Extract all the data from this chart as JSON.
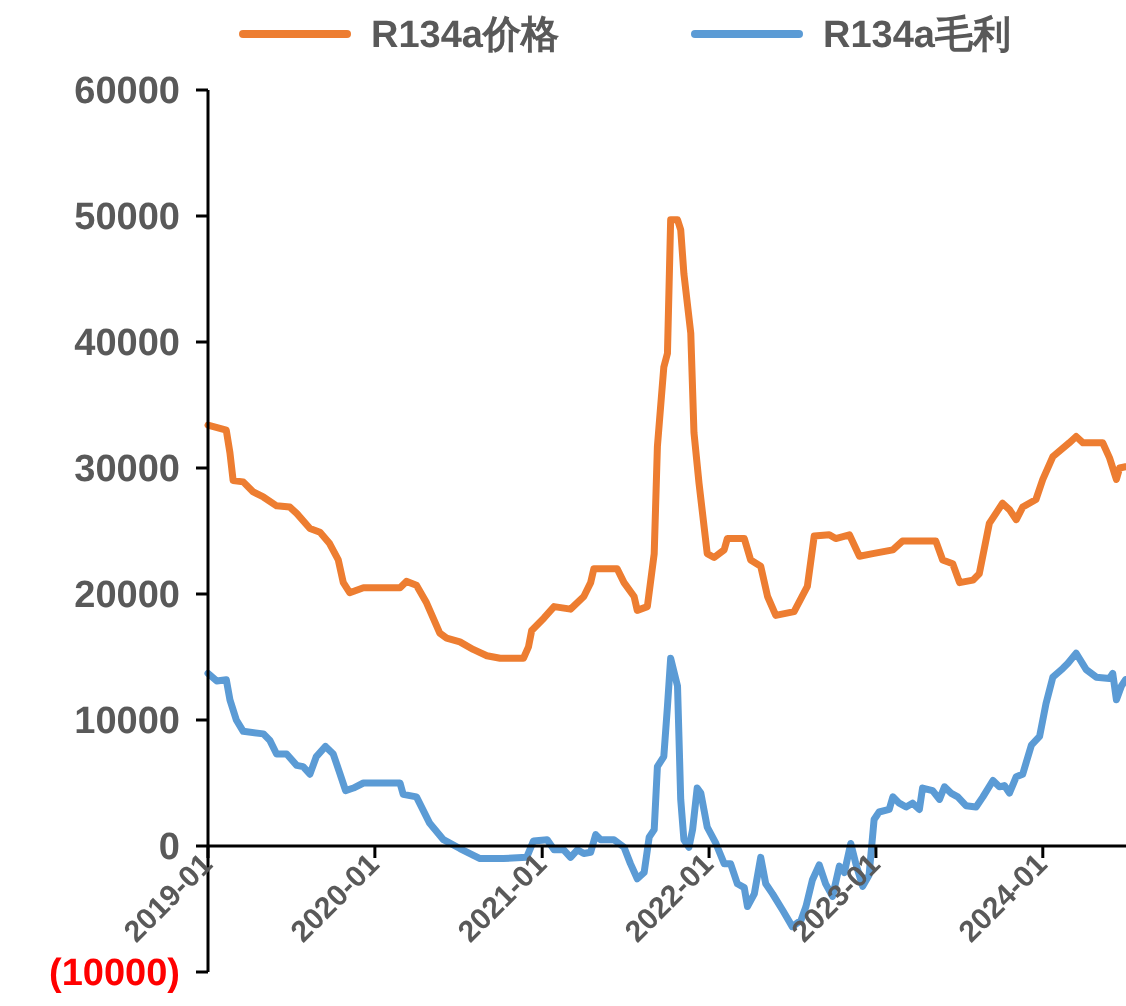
{
  "chart_data": {
    "type": "line",
    "legend": "top",
    "line_style": "solid",
    "xlim": [
      "2019-01-01",
      "2024-07-01"
    ],
    "xticks": [
      "2019-01",
      "2020-01",
      "2021-01",
      "2022-01",
      "2023-01",
      "2024-01"
    ],
    "ylim": [
      -10000,
      60000
    ],
    "yticks": [
      {
        "value": -10000,
        "label": "(10000)"
      },
      0,
      10000,
      20000,
      30000,
      40000,
      50000,
      60000
    ],
    "series": [
      {
        "name": "R134a价格",
        "color": "#ed7d31",
        "x": [
          "2019-01-01",
          "2019-02-10",
          "2019-02-18",
          "2019-02-25",
          "2019-03-19",
          "2019-04-10",
          "2019-05-02",
          "2019-05-31",
          "2019-06-29",
          "2019-07-14",
          "2019-08-12",
          "2019-09-03",
          "2019-09-24",
          "2019-10-13",
          "2019-10-24",
          "2019-11-07",
          "2019-12-07",
          "2020-02-25",
          "2020-03-10",
          "2020-04-01",
          "2020-04-23",
          "2020-05-22",
          "2020-06-06",
          "2020-07-05",
          "2020-08-03",
          "2020-09-02",
          "2020-10-01",
          "2020-11-21",
          "2020-12-02",
          "2020-12-09",
          "2021-01-05",
          "2021-01-27",
          "2021-03-04",
          "2021-04-02",
          "2021-04-17",
          "2021-04-24",
          "2021-06-14",
          "2021-06-29",
          "2021-07-21",
          "2021-07-28",
          "2021-08-19",
          "2021-09-03",
          "2021-09-10",
          "2021-09-24",
          "2021-10-02",
          "2021-10-09",
          "2021-10-24",
          "2021-10-31",
          "2021-11-07",
          "2021-11-22",
          "2021-11-29",
          "2021-12-10",
          "2021-12-28",
          "2022-01-12",
          "2022-02-03",
          "2022-02-10",
          "2022-03-19",
          "2022-04-02",
          "2022-04-24",
          "2022-05-09",
          "2022-05-27",
          "2022-07-06",
          "2022-08-04",
          "2022-08-19",
          "2022-09-21",
          "2022-10-05",
          "2022-11-04",
          "2022-11-26",
          "2022-12-25",
          "2023-02-07",
          "2023-02-28",
          "2023-05-12",
          "2023-05-27",
          "2023-06-18",
          "2023-07-03",
          "2023-08-01",
          "2023-08-15",
          "2023-09-06",
          "2023-10-05",
          "2023-10-20",
          "2023-11-04",
          "2023-11-18",
          "2023-12-17",
          "2024-01-01",
          "2024-01-23",
          "2024-02-28",
          "2024-03-14",
          "2024-03-29",
          "2024-05-11",
          "2024-05-26",
          "2024-06-10",
          "2024-06-17",
          "2024-06-30"
        ],
        "values": [
          33400,
          33000,
          31200,
          29000,
          28900,
          28100,
          27700,
          27000,
          26900,
          26400,
          25200,
          24900,
          24000,
          22700,
          20900,
          20100,
          20500,
          20500,
          21000,
          20700,
          19300,
          16900,
          16500,
          16200,
          15600,
          15100,
          14900,
          14900,
          15800,
          17100,
          18100,
          19000,
          18800,
          19800,
          20900,
          22000,
          22000,
          20900,
          19800,
          18700,
          19000,
          23200,
          31700,
          38000,
          39100,
          49700,
          49700,
          48900,
          45400,
          40700,
          32800,
          28800,
          23200,
          22900,
          23500,
          24400,
          24400,
          22700,
          22200,
          19800,
          18300,
          18600,
          20600,
          24600,
          24700,
          24400,
          24700,
          23000,
          23200,
          23500,
          24200,
          24200,
          22700,
          22400,
          20900,
          21100,
          21600,
          25600,
          27200,
          26700,
          25900,
          26900,
          27500,
          29100,
          30900,
          32000,
          32500,
          32000,
          32000,
          30800,
          29100,
          30000,
          30100
        ]
      },
      {
        "name": "R134a毛利",
        "color": "#5b9bd5",
        "x": [
          "2019-01-01",
          "2019-01-20",
          "2019-02-10",
          "2019-02-18",
          "2019-03-04",
          "2019-03-19",
          "2019-05-02",
          "2019-05-16",
          "2019-05-31",
          "2019-06-22",
          "2019-07-14",
          "2019-07-28",
          "2019-08-12",
          "2019-08-26",
          "2019-09-15",
          "2019-10-02",
          "2019-10-16",
          "2019-10-29",
          "2019-11-15",
          "2019-12-07",
          "2020-02-25",
          "2020-03-03",
          "2020-04-01",
          "2020-04-30",
          "2020-05-30",
          "2020-07-05",
          "2020-08-18",
          "2020-10-08",
          "2020-11-28",
          "2020-12-13",
          "2021-01-12",
          "2021-01-27",
          "2021-02-17",
          "2021-03-04",
          "2021-03-19",
          "2021-04-02",
          "2021-04-17",
          "2021-04-28",
          "2021-05-09",
          "2021-06-07",
          "2021-06-29",
          "2021-07-13",
          "2021-07-28",
          "2021-08-12",
          "2021-08-23",
          "2021-09-03",
          "2021-09-10",
          "2021-09-24",
          "2021-10-02",
          "2021-10-09",
          "2021-10-24",
          "2021-10-31",
          "2021-11-07",
          "2021-11-18",
          "2021-11-26",
          "2021-12-06",
          "2021-12-14",
          "2021-12-28",
          "2022-01-16",
          "2022-02-03",
          "2022-02-17",
          "2022-03-04",
          "2022-03-19",
          "2022-03-26",
          "2022-04-10",
          "2022-04-24",
          "2022-05-05",
          "2022-05-20",
          "2022-06-11",
          "2022-07-02",
          "2022-07-21",
          "2022-08-01",
          "2022-08-15",
          "2022-08-30",
          "2022-09-13",
          "2022-09-28",
          "2022-10-13",
          "2022-10-24",
          "2022-11-07",
          "2022-11-18",
          "2022-12-03",
          "2022-12-17",
          "2022-12-28",
          "2023-01-08",
          "2023-01-30",
          "2023-02-07",
          "2023-02-21",
          "2023-03-08",
          "2023-03-22",
          "2023-04-06",
          "2023-04-13",
          "2023-05-05",
          "2023-05-20",
          "2023-05-31",
          "2023-06-14",
          "2023-06-29",
          "2023-07-17",
          "2023-08-08",
          "2023-08-23",
          "2023-09-14",
          "2023-09-28",
          "2023-10-09",
          "2023-10-20",
          "2023-11-04",
          "2023-11-18",
          "2023-12-07",
          "2023-12-25",
          "2024-01-08",
          "2024-01-23",
          "2024-02-14",
          "2024-02-25",
          "2024-03-14",
          "2024-04-05",
          "2024-04-27",
          "2024-05-26",
          "2024-06-02",
          "2024-06-10",
          "2024-06-21",
          "2024-06-30"
        ],
        "values": [
          13700,
          13100,
          13200,
          11600,
          10000,
          9100,
          8900,
          8400,
          7300,
          7300,
          6400,
          6300,
          5700,
          7100,
          7900,
          7300,
          5800,
          4400,
          4600,
          5000,
          5000,
          4100,
          3900,
          1800,
          500,
          -200,
          -1000,
          -1000,
          -900,
          400,
          500,
          -300,
          -300,
          -900,
          -300,
          -600,
          -500,
          900,
          500,
          500,
          -100,
          -1400,
          -2600,
          -2100,
          700,
          1300,
          6300,
          7100,
          11100,
          14900,
          12700,
          3700,
          500,
          -100,
          1300,
          4600,
          4200,
          1500,
          200,
          -1400,
          -1400,
          -3000,
          -3300,
          -4800,
          -3800,
          -900,
          -3000,
          -3800,
          -5100,
          -6400,
          -5900,
          -4800,
          -2700,
          -1500,
          -3000,
          -4000,
          -1600,
          -2100,
          200,
          -1400,
          -3200,
          -2300,
          2100,
          2700,
          2900,
          3900,
          3400,
          3100,
          3400,
          2900,
          4600,
          4400,
          3700,
          4700,
          4200,
          3900,
          3200,
          3100,
          3900,
          5200,
          4700,
          4800,
          4200,
          5500,
          5700,
          8000,
          8700,
          11300,
          13400,
          14100,
          14500,
          15300,
          14000,
          13400,
          13300,
          13700,
          11600,
          12700,
          13200
        ]
      }
    ]
  }
}
